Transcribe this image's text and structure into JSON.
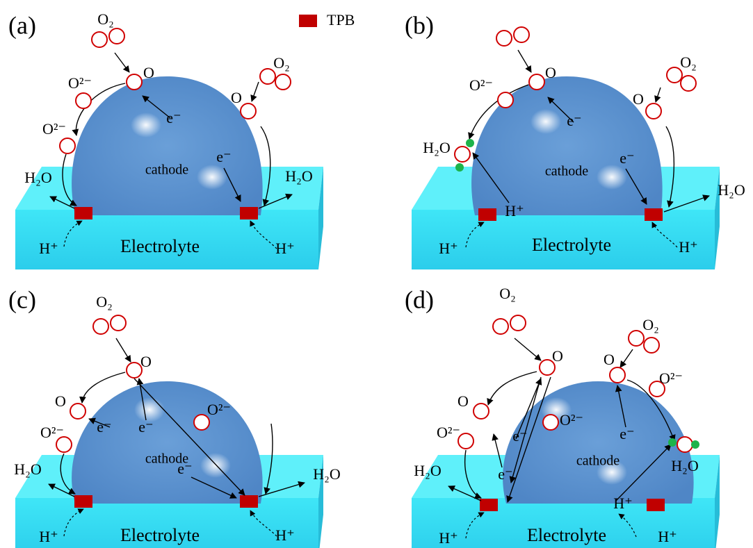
{
  "legend": {
    "label": "TPB"
  },
  "panels": [
    {
      "label": "(a)",
      "cathode": "cathode",
      "electrolyte": "Electrolyte",
      "labels": [
        "O₂",
        "O",
        "O²⁻",
        "O²⁻",
        "O₂",
        "O",
        "e⁻",
        "e⁻",
        "H₂O",
        "H₂O",
        "H⁺",
        "H⁺"
      ]
    },
    {
      "label": "(b)",
      "cathode": "cathode",
      "electrolyte": "Electrolyte",
      "labels": [
        "O",
        "O²⁻",
        "H₂O",
        "O₂",
        "O",
        "e⁻",
        "e⁻",
        "H⁺",
        "H₂O",
        "H⁺",
        "H⁺"
      ]
    },
    {
      "label": "(c)",
      "cathode": "cathode",
      "electrolyte": "Electrolyte",
      "labels": [
        "O₂",
        "O",
        "O",
        "O²⁻",
        "O²⁻",
        "e⁻",
        "e⁻",
        "e⁻",
        "H₂O",
        "H₂O",
        "H⁺",
        "H⁺"
      ]
    },
    {
      "label": "(d)",
      "cathode": "cathode",
      "electrolyte": "Electrolyte",
      "labels": [
        "O₂",
        "O",
        "O₂",
        "O",
        "O²⁻",
        "O",
        "O²⁻",
        "O²⁻",
        "e⁻",
        "e⁻",
        "e⁻",
        "H₂O",
        "H₂O",
        "H⁺",
        "H⁺",
        "H⁺"
      ]
    }
  ]
}
